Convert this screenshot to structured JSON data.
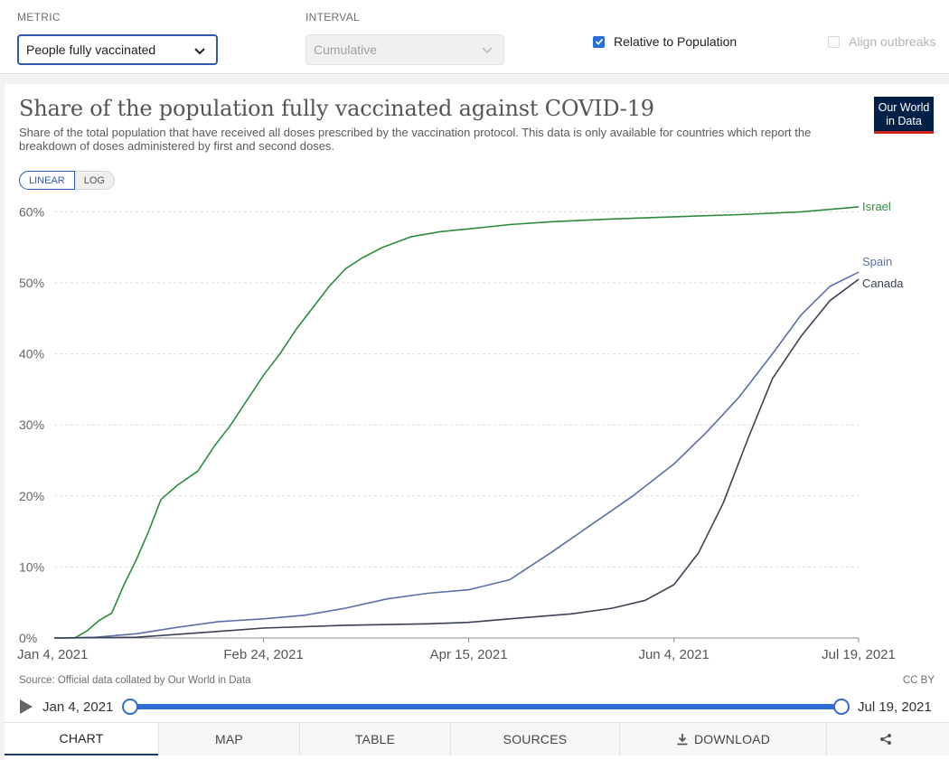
{
  "controls": {
    "metric_label": "METRIC",
    "metric_value": "People fully vaccinated",
    "interval_label": "INTERVAL",
    "interval_value": "Cumulative",
    "relative_label": "Relative to Population",
    "relative_checked": true,
    "align_label": "Align outbreaks",
    "align_checked": false
  },
  "logo": {
    "line1": "Our World",
    "line2": "in Data"
  },
  "scale_toggle": {
    "linear": "LINEAR",
    "log": "LOG",
    "active": "linear"
  },
  "footer": {
    "source": "Source: Official data collated by Our World in Data",
    "license": "CC BY"
  },
  "timeline": {
    "start": "Jan 4, 2021",
    "end": "Jul 19, 2021"
  },
  "tabs": [
    {
      "label": "CHART",
      "icon": "",
      "active": true
    },
    {
      "label": "MAP",
      "icon": "",
      "active": false
    },
    {
      "label": "TABLE",
      "icon": "",
      "active": false
    },
    {
      "label": "SOURCES",
      "icon": "",
      "active": false
    },
    {
      "label": "DOWNLOAD",
      "icon": "download-icon",
      "active": false
    },
    {
      "label": "",
      "icon": "share-icon",
      "active": false
    }
  ],
  "chart_data": {
    "type": "line",
    "title": "Share of the population fully vaccinated against COVID-19",
    "subtitle": "Share of the total population that have received all doses prescribed by the vaccination protocol. This data is only available for countries which report the breakdown of doses administered by first and second doses.",
    "xlabel": "",
    "ylabel": "",
    "x_domain": [
      "2021-01-04",
      "2021-07-19"
    ],
    "x_ticks": [
      "Jan 4, 2021",
      "Feb 24, 2021",
      "Apr 15, 2021",
      "Jun 4, 2021",
      "Jul 19, 2021"
    ],
    "x_tick_dates": [
      "2021-01-04",
      "2021-02-24",
      "2021-04-15",
      "2021-06-04",
      "2021-07-19"
    ],
    "ylim": [
      0,
      62
    ],
    "y_ticks": [
      0,
      10,
      20,
      30,
      40,
      50,
      60
    ],
    "y_tick_labels": [
      "0%",
      "10%",
      "20%",
      "30%",
      "40%",
      "50%",
      "60%"
    ],
    "y_unit": "%",
    "grid": true,
    "series": [
      {
        "name": "Israel",
        "color": "#2e8b3e",
        "points": [
          [
            "2021-01-04",
            0
          ],
          [
            "2021-01-09",
            0
          ],
          [
            "2021-01-12",
            1.0
          ],
          [
            "2021-01-15",
            2.5
          ],
          [
            "2021-01-18",
            3.5
          ],
          [
            "2021-01-21",
            7.5
          ],
          [
            "2021-01-24",
            11.0
          ],
          [
            "2021-01-27",
            15.0
          ],
          [
            "2021-01-30",
            19.5
          ],
          [
            "2021-02-03",
            21.5
          ],
          [
            "2021-02-08",
            23.5
          ],
          [
            "2021-02-12",
            27.0
          ],
          [
            "2021-02-16",
            30.0
          ],
          [
            "2021-02-20",
            33.5
          ],
          [
            "2021-02-24",
            37.0
          ],
          [
            "2021-02-28",
            40.0
          ],
          [
            "2021-03-04",
            43.5
          ],
          [
            "2021-03-08",
            46.5
          ],
          [
            "2021-03-12",
            49.5
          ],
          [
            "2021-03-16",
            52.0
          ],
          [
            "2021-03-20",
            53.5
          ],
          [
            "2021-03-25",
            55.0
          ],
          [
            "2021-04-01",
            56.5
          ],
          [
            "2021-04-08",
            57.2
          ],
          [
            "2021-04-15",
            57.6
          ],
          [
            "2021-04-25",
            58.2
          ],
          [
            "2021-05-05",
            58.6
          ],
          [
            "2021-05-20",
            59.0
          ],
          [
            "2021-06-04",
            59.3
          ],
          [
            "2021-06-20",
            59.6
          ],
          [
            "2021-07-05",
            60.0
          ],
          [
            "2021-07-19",
            60.7
          ]
        ]
      },
      {
        "name": "Spain",
        "color": "#5b6ea8",
        "points": [
          [
            "2021-01-04",
            0
          ],
          [
            "2021-01-14",
            0.1
          ],
          [
            "2021-01-24",
            0.6
          ],
          [
            "2021-02-03",
            1.5
          ],
          [
            "2021-02-13",
            2.3
          ],
          [
            "2021-02-24",
            2.7
          ],
          [
            "2021-03-06",
            3.2
          ],
          [
            "2021-03-16",
            4.2
          ],
          [
            "2021-03-26",
            5.5
          ],
          [
            "2021-04-05",
            6.3
          ],
          [
            "2021-04-15",
            6.8
          ],
          [
            "2021-04-25",
            8.2
          ],
          [
            "2021-05-05",
            12.0
          ],
          [
            "2021-05-15",
            16.0
          ],
          [
            "2021-05-25",
            20.0
          ],
          [
            "2021-06-04",
            24.5
          ],
          [
            "2021-06-12",
            29.0
          ],
          [
            "2021-06-20",
            34.0
          ],
          [
            "2021-06-28",
            40.0
          ],
          [
            "2021-07-05",
            45.5
          ],
          [
            "2021-07-12",
            49.5
          ],
          [
            "2021-07-19",
            51.5
          ]
        ]
      },
      {
        "name": "Canada",
        "color": "#3a4254",
        "points": [
          [
            "2021-01-04",
            0
          ],
          [
            "2021-01-24",
            0.1
          ],
          [
            "2021-02-10",
            0.8
          ],
          [
            "2021-02-24",
            1.4
          ],
          [
            "2021-03-16",
            1.8
          ],
          [
            "2021-04-05",
            2.0
          ],
          [
            "2021-04-15",
            2.2
          ],
          [
            "2021-04-25",
            2.7
          ],
          [
            "2021-05-10",
            3.4
          ],
          [
            "2021-05-20",
            4.2
          ],
          [
            "2021-05-28",
            5.3
          ],
          [
            "2021-06-04",
            7.5
          ],
          [
            "2021-06-10",
            12.0
          ],
          [
            "2021-06-16",
            19.0
          ],
          [
            "2021-06-22",
            28.0
          ],
          [
            "2021-06-28",
            36.5
          ],
          [
            "2021-07-05",
            42.5
          ],
          [
            "2021-07-12",
            47.5
          ],
          [
            "2021-07-19",
            50.5
          ]
        ]
      }
    ]
  }
}
